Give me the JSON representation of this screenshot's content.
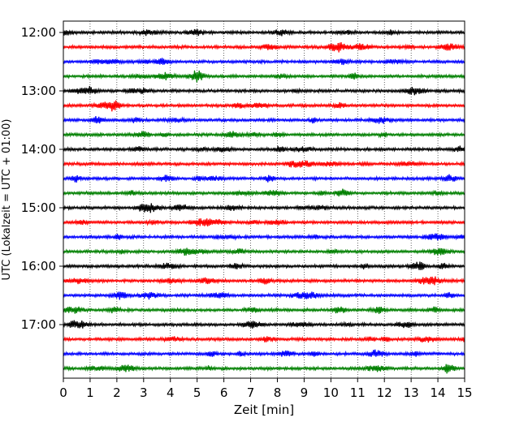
{
  "chart_data": {
    "type": "line",
    "title": "",
    "xlabel": "Zeit  [min]",
    "ylabel": "UTC (Lokalzeit = UTC + 01:00)",
    "xlim": [
      0,
      15
    ],
    "x_ticks": [
      "0",
      "1",
      "2",
      "3",
      "4",
      "5",
      "6",
      "7",
      "8",
      "9",
      "10",
      "11",
      "12",
      "13",
      "14",
      "15"
    ],
    "y_ticks": [
      "12:00",
      "13:00",
      "14:00",
      "15:00",
      "16:00",
      "17:00"
    ],
    "grid": "vertical-dotted",
    "trace_interval_minutes": 15,
    "trace_start": "12:00",
    "trace_count": 24,
    "color_cycle": [
      "#000000",
      "#ff0000",
      "#0000ff",
      "#008000"
    ]
  }
}
